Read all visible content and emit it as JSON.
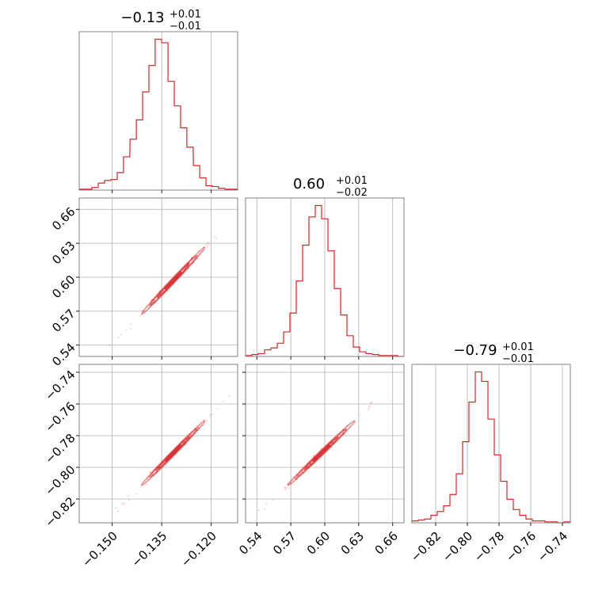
{
  "figure": {
    "type": "corner",
    "colors": {
      "accent": "#d62728",
      "frame": "#808080",
      "grid": "#b0b0b0"
    }
  },
  "chart_data": [
    {
      "id": "hist-0",
      "type": "bar",
      "subtype": "histogram-step",
      "title": "−0.13",
      "title_sup": "+0.01",
      "title_sub": "−0.01",
      "xlim": [
        -0.16,
        -0.112
      ],
      "grid": true,
      "x": [
        -0.16,
        -0.1581,
        -0.1562,
        -0.1542,
        -0.1523,
        -0.1504,
        -0.1485,
        -0.1466,
        -0.1446,
        -0.1427,
        -0.1408,
        -0.1389,
        -0.137,
        -0.135,
        -0.1331,
        -0.1312,
        -0.1293,
        -0.1274,
        -0.1254,
        -0.1235,
        -0.1216,
        -0.1197,
        -0.1178,
        -0.1158,
        -0.1139,
        -0.112
      ],
      "values": [
        1,
        1,
        3,
        8,
        11,
        12,
        20,
        38,
        58,
        80,
        112,
        142,
        172,
        168,
        124,
        96,
        71,
        49,
        28,
        14,
        5,
        4,
        2,
        1,
        1,
        0
      ]
    },
    {
      "id": "hist-1",
      "type": "bar",
      "subtype": "histogram-step",
      "title": "0.60",
      "title_sup": "+0.01",
      "title_sub": "−0.02",
      "xlim": [
        0.53,
        0.67
      ],
      "grid": true,
      "x": [
        0.53,
        0.5356,
        0.5412,
        0.5468,
        0.5524,
        0.558,
        0.5636,
        0.5692,
        0.5748,
        0.5804,
        0.586,
        0.5916,
        0.5972,
        0.6028,
        0.6084,
        0.614,
        0.6196,
        0.6252,
        0.6308,
        0.6364,
        0.642,
        0.6476,
        0.6532,
        0.6588,
        0.6644,
        0.67
      ],
      "values": [
        1,
        2,
        3,
        7,
        9,
        14,
        26,
        46,
        80,
        118,
        148,
        160,
        146,
        112,
        72,
        44,
        22,
        10,
        5,
        3,
        2,
        1,
        1,
        1,
        0,
        0
      ]
    },
    {
      "id": "hist-2",
      "type": "bar",
      "subtype": "histogram-step",
      "title": "−0.79",
      "title_sup": "+0.01",
      "title_sub": "−0.01",
      "xlim": [
        -0.835,
        -0.735
      ],
      "grid": true,
      "x": [
        -0.835,
        -0.831,
        -0.827,
        -0.823,
        -0.819,
        -0.815,
        -0.811,
        -0.807,
        -0.803,
        -0.799,
        -0.795,
        -0.791,
        -0.787,
        -0.783,
        -0.779,
        -0.775,
        -0.771,
        -0.767,
        -0.763,
        -0.759,
        -0.755,
        -0.751,
        -0.747,
        -0.743,
        -0.739,
        -0.735
      ],
      "values": [
        2,
        3,
        4,
        8,
        12,
        18,
        30,
        52,
        86,
        128,
        160,
        150,
        110,
        72,
        44,
        25,
        14,
        8,
        4,
        2,
        2,
        1,
        1,
        0,
        1,
        0
      ]
    },
    {
      "id": "contour-1-0",
      "type": "scatter",
      "subtype": "2d-density-contour",
      "xlim": [
        -0.16,
        -0.112
      ],
      "ylim": [
        0.53,
        0.67
      ],
      "center": [
        -0.1315,
        0.597
      ],
      "std": [
        0.0048,
        0.0148
      ],
      "corr": 0.995,
      "grid": true
    },
    {
      "id": "contour-2-0",
      "type": "scatter",
      "subtype": "2d-density-contour",
      "xlim": [
        -0.16,
        -0.112
      ],
      "ylim": [
        -0.835,
        -0.735
      ],
      "center": [
        -0.1315,
        -0.791
      ],
      "std": [
        0.0048,
        0.0102
      ],
      "corr": 0.995,
      "grid": true
    },
    {
      "id": "contour-2-1",
      "type": "scatter",
      "subtype": "2d-density-contour",
      "xlim": [
        0.53,
        0.67
      ],
      "ylim": [
        -0.835,
        -0.735
      ],
      "center": [
        0.597,
        -0.791
      ],
      "std": [
        0.0148,
        0.0102
      ],
      "corr": 0.995,
      "grid": true
    }
  ],
  "axes": {
    "param0": {
      "ticks": [
        -0.15,
        -0.135,
        -0.12
      ],
      "labels": [
        "−0.150",
        "−0.135",
        "−0.120"
      ]
    },
    "param1": {
      "ticks": [
        0.54,
        0.57,
        0.6,
        0.63,
        0.66
      ],
      "labels": [
        "0.54",
        "0.57",
        "0.60",
        "0.63",
        "0.66"
      ]
    },
    "param2": {
      "ticks": [
        -0.82,
        -0.8,
        -0.78,
        -0.76,
        -0.74
      ],
      "labels": [
        "−0.82",
        "−0.80",
        "−0.78",
        "−0.76",
        "−0.74"
      ]
    }
  }
}
